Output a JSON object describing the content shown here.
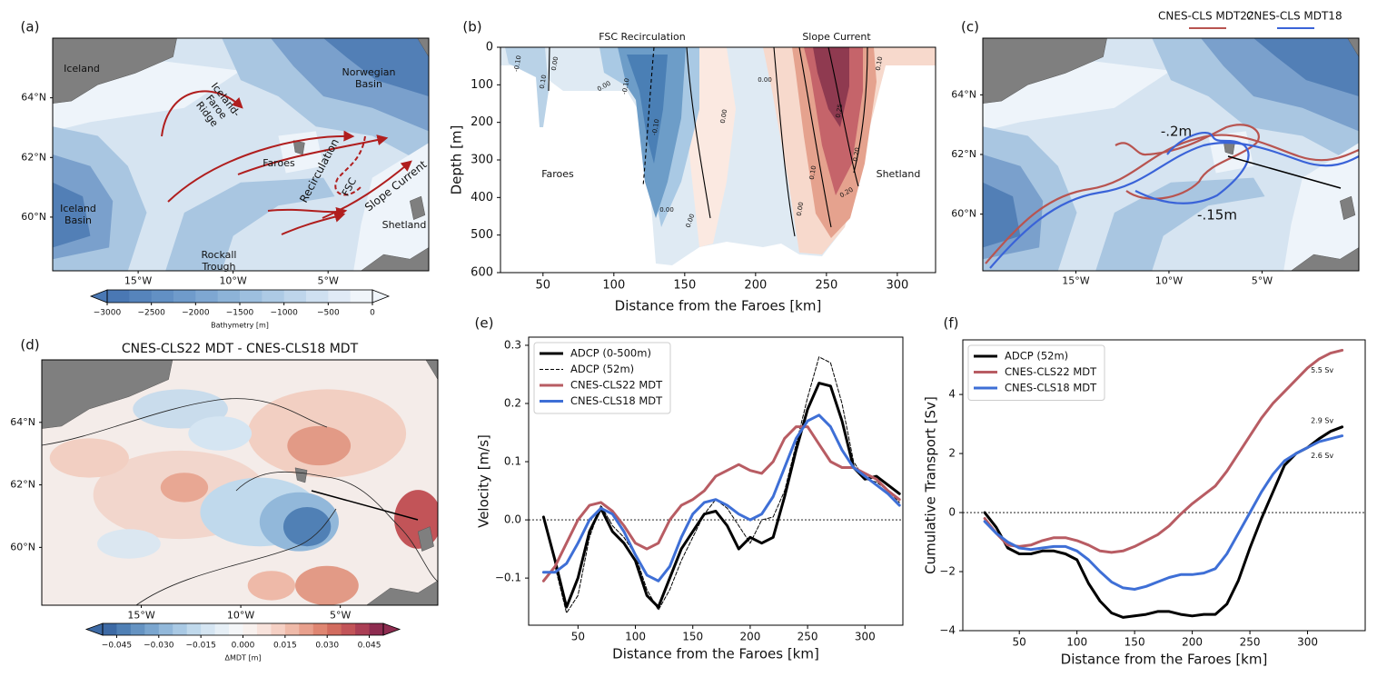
{
  "chart_data": [
    {
      "type": "map",
      "panel_label": "(a)",
      "xlim": [
        -19.5,
        0.3
      ],
      "ylim": [
        58.2,
        66
      ],
      "xticks": [
        {
          "value": -15,
          "label": "15°W"
        },
        {
          "value": -10,
          "label": "10°W"
        },
        {
          "value": -5,
          "label": "5°W"
        }
      ],
      "yticks": [
        {
          "value": 60,
          "label": "60°N"
        },
        {
          "value": 62,
          "label": "62°N"
        },
        {
          "value": 64,
          "label": "64°N"
        }
      ],
      "labels": [
        [
          "Iceland"
        ],
        [
          "Norwegian",
          "Basin"
        ],
        [
          "Iceland-",
          "Faroe",
          "Ridge"
        ],
        [
          "Faroes"
        ],
        [
          "Recirculation"
        ],
        [
          "FSC"
        ],
        [
          "Slope Current"
        ],
        [
          "Iceland",
          "Basin"
        ],
        [
          "Shetland"
        ],
        [
          "Rockall",
          "Trough"
        ]
      ],
      "colorbar": {
        "label": "Bathymetry [m]",
        "lim": [
          -3000,
          0
        ],
        "extend": "both",
        "ticks": [
          {
            "value": -3000,
            "label": "−3000"
          },
          {
            "value": -2500,
            "label": "−2500"
          },
          {
            "value": -2000,
            "label": "−2000"
          },
          {
            "value": -1500,
            "label": "−1500"
          },
          {
            "value": -1000,
            "label": "−1000"
          },
          {
            "value": -500,
            "label": "−500"
          },
          0
        ],
        "colors": [
          "#4a78b4",
          "#5684bc",
          "#6290c4",
          "#6f9bcb",
          "#7ea7d2",
          "#8db3d8",
          "#9dbfdf",
          "#adcae5",
          "#bed5eb",
          "#cfe0f1",
          "#e0eaf6",
          "#f0f5fa"
        ]
      }
    },
    {
      "type": "contour",
      "panel_label": "(b)",
      "xlabel": "Distance from the Faroes [km]",
      "ylabel": "Depth [m]",
      "xlim": [
        20,
        327
      ],
      "ylim": [
        600,
        0
      ],
      "xticks": [
        50,
        100,
        150,
        200,
        250,
        300
      ],
      "yticks": [
        0,
        100,
        200,
        300,
        400,
        500,
        600
      ],
      "labels": [
        "FSC Recirculation",
        "Slope Current",
        "Faroes",
        "Shetland"
      ],
      "contour_labels": [
        "-0.10",
        "0.10",
        "0.00",
        "0.00",
        "-0.10",
        "-0.10",
        "0.00",
        "0.00",
        "0.00",
        "0.00",
        "0.25",
        "0.20",
        "0.10",
        "0.20",
        "0.00",
        "0.10"
      ]
    },
    {
      "type": "map",
      "panel_label": "(c)",
      "xlim": [
        -20,
        0.2
      ],
      "ylim": [
        58.1,
        65.9
      ],
      "xticks": [
        {
          "value": -15,
          "label": "15°W"
        },
        {
          "value": -10,
          "label": "10°W"
        },
        {
          "value": -5,
          "label": "5°W"
        }
      ],
      "yticks": [
        {
          "value": 60,
          "label": "60°N"
        },
        {
          "value": 62,
          "label": "62°N"
        },
        {
          "value": 64,
          "label": "64°N"
        }
      ],
      "labels": [
        [
          "-.2m"
        ],
        [
          "-.15m"
        ]
      ],
      "series": [
        {
          "name": "CNES-CLS MDT22",
          "color": "#b85450"
        },
        {
          "name": "CNES-CLS MDT18",
          "color": "#3a63d8"
        }
      ]
    },
    {
      "type": "map",
      "panel_label": "(d)",
      "title": "CNES-CLS22 MDT - CNES-CLS18 MDT",
      "xlim": [
        -20,
        -0.1
      ],
      "ylim": [
        58.15,
        66
      ],
      "xticks": [
        {
          "value": -15,
          "label": "15°W"
        },
        {
          "value": -10,
          "label": "10°W"
        },
        {
          "value": -5,
          "label": "5°W"
        }
      ],
      "yticks": [
        {
          "value": 60,
          "label": "60°N"
        },
        {
          "value": 62,
          "label": "62°N"
        },
        {
          "value": 64,
          "label": "64°N"
        }
      ],
      "colorbar": {
        "label": "ΔMDT [m]",
        "lim": [
          -0.05,
          0.05
        ],
        "extend": "both",
        "ticks": [
          {
            "value": -0.045,
            "label": "−0.045"
          },
          {
            "value": -0.03,
            "label": "−0.030"
          },
          {
            "value": -0.015,
            "label": "−0.015"
          },
          {
            "value": 0,
            "label": "0.000"
          },
          {
            "value": 0.015,
            "label": "0.015"
          },
          {
            "value": 0.03,
            "label": "0.030"
          },
          {
            "value": 0.045,
            "label": "0.045"
          }
        ],
        "colors": [
          "#3d6aa5",
          "#5080b5",
          "#6593c2",
          "#7ba6cf",
          "#92b8da",
          "#a9c9e4",
          "#c0d9ec",
          "#d5e5f2",
          "#e6eff6",
          "#f4f6f8",
          "#f8f1ee",
          "#f8e3dc",
          "#f5d0c4",
          "#efbaa9",
          "#e8a08d",
          "#df8672",
          "#d26c5f",
          "#c25458",
          "#ab3f55",
          "#8e2c50"
        ]
      }
    },
    {
      "type": "line",
      "panel_label": "(e)",
      "xlabel": "Distance from the Faroes [km]",
      "ylabel": "Velocity [m/s]",
      "xlim": [
        7,
        333
      ],
      "ylim": [
        -0.181,
        0.314
      ],
      "xticks": [
        50,
        100,
        150,
        200,
        250,
        300
      ],
      "yticks": [
        {
          "value": -0.1,
          "label": "−0.1"
        },
        {
          "value": 0,
          "label": "0.0"
        },
        0.1,
        0.2,
        0.3
      ],
      "hline": 0,
      "legend": "upper left",
      "x": [
        20,
        30,
        40,
        50,
        60,
        70,
        80,
        90,
        100,
        110,
        120,
        130,
        140,
        150,
        160,
        170,
        180,
        190,
        200,
        210,
        220,
        230,
        240,
        250,
        260,
        270,
        280,
        290,
        300,
        310,
        320,
        330
      ],
      "series": [
        {
          "name": "ADCP (0-500m)",
          "color": "#000000",
          "width": 3,
          "dash": false,
          "values": [
            0.005,
            -0.07,
            -0.15,
            -0.1,
            -0.02,
            0.02,
            -0.02,
            -0.04,
            -0.07,
            -0.13,
            -0.15,
            -0.1,
            -0.05,
            -0.02,
            0.01,
            0.015,
            -0.01,
            -0.05,
            -0.03,
            -0.04,
            -0.03,
            0.04,
            0.12,
            0.19,
            0.235,
            0.23,
            0.17,
            0.09,
            0.07,
            0.075,
            0.06,
            0.045
          ]
        },
        {
          "name": "ADCP (52m)",
          "color": "#000000",
          "width": 1,
          "dash": true,
          "values": [
            null,
            -0.08,
            -0.16,
            -0.13,
            -0.03,
            0.025,
            -0.01,
            -0.03,
            -0.06,
            -0.12,
            -0.155,
            -0.12,
            -0.07,
            -0.03,
            0.01,
            0.035,
            0.02,
            -0.01,
            -0.04,
            0.0,
            0.005,
            0.05,
            0.13,
            0.21,
            0.28,
            0.27,
            0.2,
            0.1,
            0.07,
            0.065,
            0.05,
            0.03
          ]
        },
        {
          "name": "CNES-CLS22 MDT",
          "color": "#b85c63",
          "width": 3,
          "dash": false,
          "values": [
            -0.105,
            -0.08,
            -0.04,
            0.0,
            0.025,
            0.03,
            0.015,
            -0.01,
            -0.04,
            -0.05,
            -0.04,
            0.0,
            0.025,
            0.035,
            0.05,
            0.075,
            0.085,
            0.095,
            0.085,
            0.08,
            0.1,
            0.14,
            0.16,
            0.16,
            0.13,
            0.1,
            0.09,
            0.09,
            0.08,
            0.07,
            0.05,
            0.035
          ]
        },
        {
          "name": "CNES-CLS18 MDT",
          "color": "#3e6fd6",
          "width": 3,
          "dash": false,
          "values": [
            -0.09,
            -0.09,
            -0.075,
            -0.04,
            0.0,
            0.02,
            0.01,
            -0.02,
            -0.06,
            -0.095,
            -0.105,
            -0.08,
            -0.03,
            0.01,
            0.03,
            0.035,
            0.025,
            0.01,
            0.0,
            0.01,
            0.04,
            0.09,
            0.14,
            0.17,
            0.18,
            0.16,
            0.12,
            0.09,
            0.075,
            0.06,
            0.045,
            0.025
          ]
        }
      ]
    },
    {
      "type": "line",
      "panel_label": "(f)",
      "xlabel": "Distance from the Faroes [km]",
      "ylabel": "Cumulative Transport [Sv]",
      "xlim": [
        1,
        350
      ],
      "ylim": [
        -4,
        5.85
      ],
      "xticks": [
        50,
        100,
        150,
        200,
        250,
        300
      ],
      "yticks": [
        {
          "value": -4,
          "label": "−4"
        },
        {
          "value": -2,
          "label": "−2"
        },
        0,
        2,
        4
      ],
      "hline": 0,
      "legend": "upper left",
      "x": [
        20,
        30,
        40,
        50,
        60,
        70,
        80,
        90,
        100,
        110,
        120,
        130,
        140,
        150,
        160,
        170,
        180,
        190,
        200,
        210,
        220,
        230,
        240,
        250,
        260,
        270,
        280,
        290,
        300,
        310,
        320,
        330
      ],
      "series": [
        {
          "name": "ADCP (52m)",
          "color": "#000000",
          "width": 3,
          "dash": false,
          "end_label": "2.9 Sv",
          "values": [
            0.0,
            -0.5,
            -1.2,
            -1.4,
            -1.4,
            -1.3,
            -1.3,
            -1.4,
            -1.6,
            -2.4,
            -3.0,
            -3.4,
            -3.55,
            -3.5,
            -3.45,
            -3.35,
            -3.35,
            -3.45,
            -3.5,
            -3.45,
            -3.45,
            -3.1,
            -2.3,
            -1.2,
            -0.2,
            0.7,
            1.6,
            2.0,
            2.2,
            2.5,
            2.75,
            2.9
          ]
        },
        {
          "name": "CNES-CLS22 MDT",
          "color": "#b85c63",
          "width": 3,
          "dash": false,
          "end_label": "5.5 Sv",
          "values": [
            -0.2,
            -0.7,
            -1.1,
            -1.15,
            -1.1,
            -0.95,
            -0.85,
            -0.85,
            -0.95,
            -1.1,
            -1.3,
            -1.35,
            -1.3,
            -1.15,
            -0.95,
            -0.75,
            -0.45,
            -0.05,
            0.3,
            0.6,
            0.9,
            1.4,
            2.0,
            2.6,
            3.2,
            3.7,
            4.1,
            4.5,
            4.9,
            5.2,
            5.4,
            5.5
          ]
        },
        {
          "name": "CNES-CLS18 MDT",
          "color": "#3e6fd6",
          "width": 3,
          "dash": false,
          "end_label": "2.6 Sv",
          "values": [
            -0.3,
            -0.7,
            -1.0,
            -1.2,
            -1.25,
            -1.2,
            -1.15,
            -1.15,
            -1.3,
            -1.6,
            -2.0,
            -2.35,
            -2.55,
            -2.6,
            -2.5,
            -2.35,
            -2.2,
            -2.1,
            -2.1,
            -2.05,
            -1.9,
            -1.4,
            -0.7,
            0.0,
            0.7,
            1.3,
            1.75,
            2.0,
            2.2,
            2.4,
            2.5,
            2.6
          ]
        }
      ]
    }
  ]
}
